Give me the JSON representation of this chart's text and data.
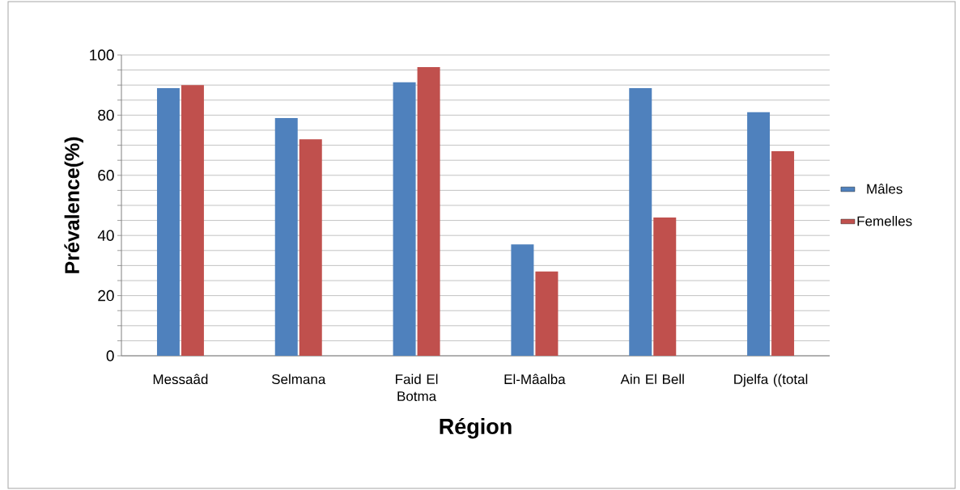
{
  "chart_data": {
    "type": "bar",
    "xlabel": "Région",
    "ylabel": "Prévalence(%)",
    "categories": [
      "Messaâd",
      "Selmana",
      "Faid El Botma",
      "El-Mâalba",
      "Ain El Bell",
      "Djelfa ((total"
    ],
    "series": [
      {
        "name": "Mâles",
        "color": "#4f81bd",
        "values": [
          89,
          79,
          91,
          37,
          89,
          81
        ]
      },
      {
        "name": "Femelles",
        "color": "#c0504d",
        "values": [
          90,
          72,
          96,
          28,
          46,
          68
        ]
      }
    ],
    "ylim": [
      0,
      100
    ],
    "yticks": [
      0,
      {
        "value": 5,
        "label": null
      },
      {
        "value": 10,
        "label": null
      },
      {
        "value": 15,
        "label": null
      },
      20,
      {
        "value": 25,
        "label": null
      },
      {
        "value": 30,
        "label": null
      },
      {
        "value": 35,
        "label": null
      },
      40,
      {
        "value": 45,
        "label": null
      },
      {
        "value": 50,
        "label": null
      },
      {
        "value": 55,
        "label": null
      },
      60,
      {
        "value": 65,
        "label": null
      },
      {
        "value": 70,
        "label": null
      },
      {
        "value": 75,
        "label": null
      },
      80,
      {
        "value": 85,
        "label": null
      },
      {
        "value": 90,
        "label": null
      },
      {
        "value": 95,
        "label": null
      },
      100
    ],
    "grid": "y",
    "legend": "right"
  }
}
